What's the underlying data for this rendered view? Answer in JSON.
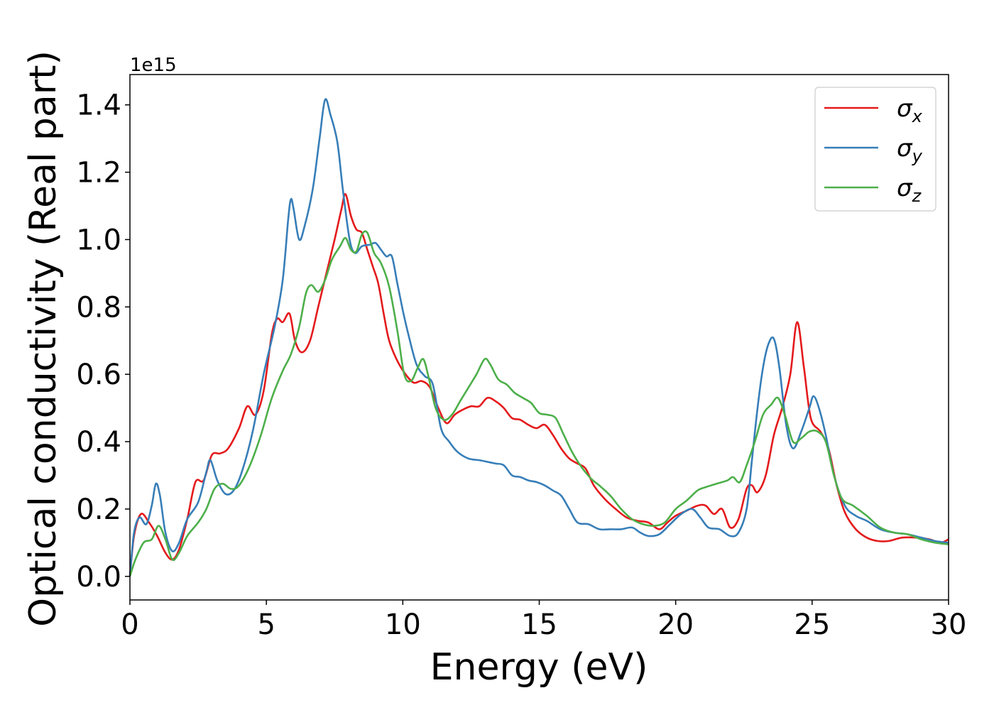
{
  "chart_data": {
    "type": "line",
    "title": "",
    "xlabel": "Energy (eV)",
    "ylabel": "Optical conductivity (Real part)",
    "y_offset_text": "1e15",
    "y_scale": 1000000000000000.0,
    "xlim": [
      0,
      30
    ],
    "ylim": [
      -0.07,
      1.49
    ],
    "xticks": [
      0,
      5,
      10,
      15,
      20,
      25,
      30
    ],
    "xtick_labels": [
      "0",
      "5",
      "10",
      "15",
      "20",
      "25",
      "30"
    ],
    "yticks": [
      0.0,
      0.2,
      0.4,
      0.6,
      0.8,
      1.0,
      1.2,
      1.4
    ],
    "ytick_labels": [
      "0.0",
      "0.2",
      "0.4",
      "0.6",
      "0.8",
      "1.0",
      "1.2",
      "1.4"
    ],
    "grid": false,
    "legend": {
      "position": "top-right"
    },
    "series": [
      {
        "name": "σ_x",
        "label_main": "σ",
        "label_sub": "x",
        "color": "#e41a1c",
        "points": [
          [
            0,
            0
          ],
          [
            0.15,
            0.12
          ],
          [
            0.4,
            0.185
          ],
          [
            0.7,
            0.16
          ],
          [
            1.0,
            0.12
          ],
          [
            1.3,
            0.07
          ],
          [
            1.55,
            0.05
          ],
          [
            1.8,
            0.08
          ],
          [
            2.1,
            0.17
          ],
          [
            2.4,
            0.28
          ],
          [
            2.7,
            0.285
          ],
          [
            3.0,
            0.36
          ],
          [
            3.3,
            0.365
          ],
          [
            3.6,
            0.38
          ],
          [
            4.0,
            0.44
          ],
          [
            4.3,
            0.505
          ],
          [
            4.6,
            0.48
          ],
          [
            4.9,
            0.55
          ],
          [
            5.2,
            0.72
          ],
          [
            5.4,
            0.765
          ],
          [
            5.6,
            0.755
          ],
          [
            5.85,
            0.78
          ],
          [
            6.05,
            0.7
          ],
          [
            6.3,
            0.665
          ],
          [
            6.6,
            0.7
          ],
          [
            6.9,
            0.8
          ],
          [
            7.2,
            0.9
          ],
          [
            7.5,
            1.0
          ],
          [
            7.75,
            1.09
          ],
          [
            7.9,
            1.135
          ],
          [
            8.1,
            1.07
          ],
          [
            8.3,
            1.03
          ],
          [
            8.5,
            1.02
          ],
          [
            8.7,
            0.97
          ],
          [
            8.9,
            0.92
          ],
          [
            9.1,
            0.87
          ],
          [
            9.3,
            0.78
          ],
          [
            9.5,
            0.7
          ],
          [
            9.8,
            0.64
          ],
          [
            10.1,
            0.6
          ],
          [
            10.4,
            0.575
          ],
          [
            10.7,
            0.58
          ],
          [
            11.0,
            0.56
          ],
          [
            11.3,
            0.5
          ],
          [
            11.6,
            0.455
          ],
          [
            11.9,
            0.48
          ],
          [
            12.2,
            0.495
          ],
          [
            12.5,
            0.505
          ],
          [
            12.8,
            0.505
          ],
          [
            13.1,
            0.53
          ],
          [
            13.4,
            0.52
          ],
          [
            13.7,
            0.5
          ],
          [
            14.0,
            0.47
          ],
          [
            14.3,
            0.465
          ],
          [
            14.6,
            0.45
          ],
          [
            14.9,
            0.44
          ],
          [
            15.2,
            0.45
          ],
          [
            15.5,
            0.42
          ],
          [
            15.8,
            0.38
          ],
          [
            16.1,
            0.35
          ],
          [
            16.4,
            0.335
          ],
          [
            16.7,
            0.32
          ],
          [
            17.0,
            0.27
          ],
          [
            17.4,
            0.23
          ],
          [
            17.8,
            0.2
          ],
          [
            18.2,
            0.175
          ],
          [
            18.6,
            0.165
          ],
          [
            19.0,
            0.16
          ],
          [
            19.4,
            0.14
          ],
          [
            19.7,
            0.16
          ],
          [
            20.0,
            0.18
          ],
          [
            20.4,
            0.195
          ],
          [
            20.8,
            0.21
          ],
          [
            21.1,
            0.21
          ],
          [
            21.4,
            0.185
          ],
          [
            21.7,
            0.2
          ],
          [
            22.0,
            0.145
          ],
          [
            22.3,
            0.17
          ],
          [
            22.6,
            0.26
          ],
          [
            22.8,
            0.27
          ],
          [
            23.0,
            0.25
          ],
          [
            23.3,
            0.3
          ],
          [
            23.6,
            0.42
          ],
          [
            23.9,
            0.5
          ],
          [
            24.2,
            0.6
          ],
          [
            24.45,
            0.755
          ],
          [
            24.7,
            0.62
          ],
          [
            24.95,
            0.47
          ],
          [
            25.3,
            0.43
          ],
          [
            25.6,
            0.38
          ],
          [
            25.9,
            0.27
          ],
          [
            26.2,
            0.19
          ],
          [
            26.6,
            0.14
          ],
          [
            27.0,
            0.115
          ],
          [
            27.4,
            0.105
          ],
          [
            27.8,
            0.105
          ],
          [
            28.3,
            0.115
          ],
          [
            28.8,
            0.115
          ],
          [
            29.3,
            0.11
          ],
          [
            29.7,
            0.1
          ],
          [
            30.0,
            0.11
          ]
        ]
      },
      {
        "name": "σ_y",
        "label_main": "σ",
        "label_sub": "y",
        "color": "#377eb8",
        "points": [
          [
            0,
            0
          ],
          [
            0.15,
            0.13
          ],
          [
            0.35,
            0.175
          ],
          [
            0.6,
            0.155
          ],
          [
            0.8,
            0.21
          ],
          [
            0.95,
            0.275
          ],
          [
            1.1,
            0.24
          ],
          [
            1.3,
            0.13
          ],
          [
            1.55,
            0.075
          ],
          [
            1.8,
            0.1
          ],
          [
            2.1,
            0.17
          ],
          [
            2.5,
            0.22
          ],
          [
            2.8,
            0.31
          ],
          [
            2.95,
            0.345
          ],
          [
            3.2,
            0.285
          ],
          [
            3.5,
            0.245
          ],
          [
            3.8,
            0.255
          ],
          [
            4.1,
            0.31
          ],
          [
            4.5,
            0.43
          ],
          [
            4.9,
            0.6
          ],
          [
            5.3,
            0.74
          ],
          [
            5.6,
            0.88
          ],
          [
            5.8,
            1.06
          ],
          [
            5.9,
            1.12
          ],
          [
            6.0,
            1.09
          ],
          [
            6.2,
            1.0
          ],
          [
            6.4,
            1.04
          ],
          [
            6.7,
            1.15
          ],
          [
            6.95,
            1.3
          ],
          [
            7.15,
            1.415
          ],
          [
            7.35,
            1.37
          ],
          [
            7.6,
            1.29
          ],
          [
            7.8,
            1.15
          ],
          [
            8.05,
            1.0
          ],
          [
            8.25,
            0.96
          ],
          [
            8.5,
            0.98
          ],
          [
            8.8,
            0.985
          ],
          [
            9.0,
            0.99
          ],
          [
            9.2,
            0.97
          ],
          [
            9.4,
            0.95
          ],
          [
            9.6,
            0.95
          ],
          [
            9.8,
            0.87
          ],
          [
            10.0,
            0.79
          ],
          [
            10.2,
            0.72
          ],
          [
            10.5,
            0.63
          ],
          [
            10.8,
            0.595
          ],
          [
            11.1,
            0.57
          ],
          [
            11.4,
            0.44
          ],
          [
            11.7,
            0.4
          ],
          [
            12.0,
            0.37
          ],
          [
            12.4,
            0.35
          ],
          [
            12.8,
            0.345
          ],
          [
            13.1,
            0.34
          ],
          [
            13.4,
            0.335
          ],
          [
            13.7,
            0.33
          ],
          [
            14.0,
            0.3
          ],
          [
            14.3,
            0.295
          ],
          [
            14.6,
            0.285
          ],
          [
            14.9,
            0.28
          ],
          [
            15.2,
            0.27
          ],
          [
            15.5,
            0.255
          ],
          [
            15.8,
            0.24
          ],
          [
            16.1,
            0.2
          ],
          [
            16.4,
            0.16
          ],
          [
            16.8,
            0.155
          ],
          [
            17.2,
            0.14
          ],
          [
            17.6,
            0.14
          ],
          [
            18.0,
            0.14
          ],
          [
            18.4,
            0.145
          ],
          [
            18.7,
            0.13
          ],
          [
            19.0,
            0.12
          ],
          [
            19.4,
            0.125
          ],
          [
            19.8,
            0.155
          ],
          [
            20.2,
            0.185
          ],
          [
            20.6,
            0.2
          ],
          [
            20.9,
            0.175
          ],
          [
            21.2,
            0.145
          ],
          [
            21.6,
            0.14
          ],
          [
            22.0,
            0.12
          ],
          [
            22.3,
            0.13
          ],
          [
            22.6,
            0.2
          ],
          [
            22.8,
            0.35
          ],
          [
            23.0,
            0.5
          ],
          [
            23.2,
            0.62
          ],
          [
            23.4,
            0.69
          ],
          [
            23.6,
            0.705
          ],
          [
            23.8,
            0.62
          ],
          [
            24.05,
            0.45
          ],
          [
            24.3,
            0.38
          ],
          [
            24.6,
            0.43
          ],
          [
            24.9,
            0.5
          ],
          [
            25.05,
            0.535
          ],
          [
            25.25,
            0.5
          ],
          [
            25.5,
            0.42
          ],
          [
            25.8,
            0.3
          ],
          [
            26.2,
            0.21
          ],
          [
            26.6,
            0.18
          ],
          [
            27.0,
            0.165
          ],
          [
            27.5,
            0.14
          ],
          [
            28.0,
            0.13
          ],
          [
            28.5,
            0.125
          ],
          [
            29.0,
            0.115
          ],
          [
            29.5,
            0.105
          ],
          [
            30.0,
            0.1
          ]
        ]
      },
      {
        "name": "σ_z",
        "label_main": "σ",
        "label_sub": "z",
        "color": "#4daf4a",
        "points": [
          [
            0,
            0
          ],
          [
            0.2,
            0.05
          ],
          [
            0.5,
            0.1
          ],
          [
            0.8,
            0.11
          ],
          [
            1.05,
            0.15
          ],
          [
            1.3,
            0.11
          ],
          [
            1.55,
            0.05
          ],
          [
            1.8,
            0.07
          ],
          [
            2.1,
            0.12
          ],
          [
            2.5,
            0.16
          ],
          [
            2.8,
            0.2
          ],
          [
            3.1,
            0.26
          ],
          [
            3.4,
            0.275
          ],
          [
            3.7,
            0.26
          ],
          [
            4.0,
            0.27
          ],
          [
            4.4,
            0.33
          ],
          [
            4.8,
            0.42
          ],
          [
            5.2,
            0.53
          ],
          [
            5.6,
            0.61
          ],
          [
            5.9,
            0.66
          ],
          [
            6.2,
            0.74
          ],
          [
            6.45,
            0.84
          ],
          [
            6.65,
            0.865
          ],
          [
            6.9,
            0.845
          ],
          [
            7.15,
            0.88
          ],
          [
            7.4,
            0.94
          ],
          [
            7.7,
            0.98
          ],
          [
            7.9,
            1.005
          ],
          [
            8.1,
            0.97
          ],
          [
            8.3,
            0.965
          ],
          [
            8.5,
            1.015
          ],
          [
            8.7,
            1.02
          ],
          [
            8.95,
            0.96
          ],
          [
            9.2,
            0.93
          ],
          [
            9.5,
            0.86
          ],
          [
            9.8,
            0.73
          ],
          [
            10.05,
            0.6
          ],
          [
            10.3,
            0.58
          ],
          [
            10.55,
            0.62
          ],
          [
            10.75,
            0.645
          ],
          [
            10.95,
            0.59
          ],
          [
            11.2,
            0.5
          ],
          [
            11.5,
            0.465
          ],
          [
            11.8,
            0.48
          ],
          [
            12.1,
            0.52
          ],
          [
            12.4,
            0.56
          ],
          [
            12.7,
            0.6
          ],
          [
            13.0,
            0.645
          ],
          [
            13.2,
            0.63
          ],
          [
            13.5,
            0.585
          ],
          [
            13.8,
            0.57
          ],
          [
            14.1,
            0.545
          ],
          [
            14.4,
            0.53
          ],
          [
            14.7,
            0.515
          ],
          [
            15.0,
            0.485
          ],
          [
            15.3,
            0.48
          ],
          [
            15.6,
            0.47
          ],
          [
            15.9,
            0.42
          ],
          [
            16.2,
            0.37
          ],
          [
            16.5,
            0.33
          ],
          [
            16.9,
            0.29
          ],
          [
            17.2,
            0.27
          ],
          [
            17.6,
            0.24
          ],
          [
            18.0,
            0.2
          ],
          [
            18.4,
            0.17
          ],
          [
            18.8,
            0.155
          ],
          [
            19.2,
            0.15
          ],
          [
            19.6,
            0.16
          ],
          [
            20.0,
            0.2
          ],
          [
            20.4,
            0.225
          ],
          [
            20.8,
            0.255
          ],
          [
            21.1,
            0.265
          ],
          [
            21.5,
            0.275
          ],
          [
            21.9,
            0.285
          ],
          [
            22.1,
            0.295
          ],
          [
            22.35,
            0.28
          ],
          [
            22.6,
            0.33
          ],
          [
            22.9,
            0.4
          ],
          [
            23.2,
            0.48
          ],
          [
            23.5,
            0.51
          ],
          [
            23.75,
            0.53
          ],
          [
            24.0,
            0.48
          ],
          [
            24.3,
            0.4
          ],
          [
            24.6,
            0.41
          ],
          [
            24.9,
            0.43
          ],
          [
            25.2,
            0.43
          ],
          [
            25.5,
            0.4
          ],
          [
            25.8,
            0.3
          ],
          [
            26.1,
            0.23
          ],
          [
            26.5,
            0.21
          ],
          [
            27.0,
            0.18
          ],
          [
            27.5,
            0.145
          ],
          [
            28.0,
            0.13
          ],
          [
            28.5,
            0.125
          ],
          [
            29.0,
            0.11
          ],
          [
            29.5,
            0.1
          ],
          [
            30.0,
            0.095
          ]
        ]
      }
    ]
  }
}
